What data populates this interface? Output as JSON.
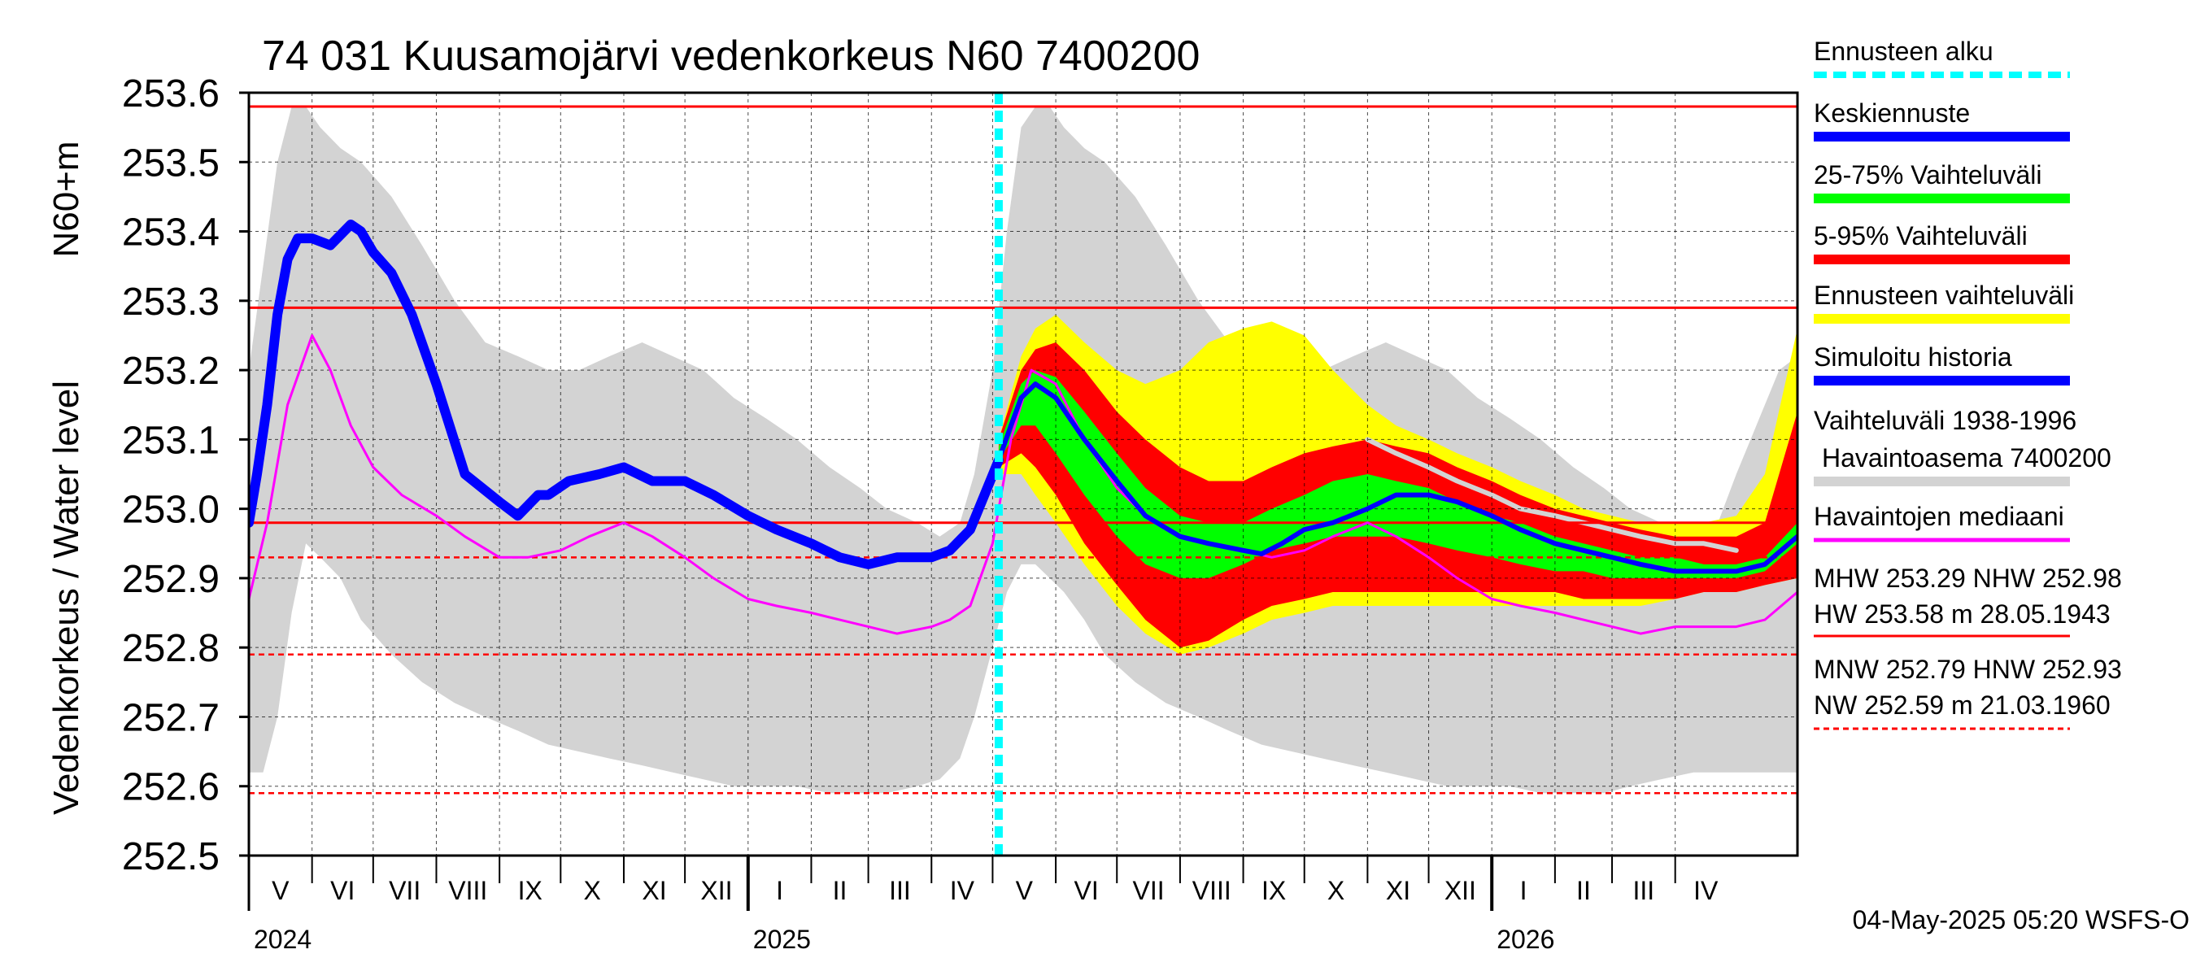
{
  "chart_data": {
    "type": "line",
    "title": "74 031 Kuusamojärvi vedenkorkeus N60 7400200",
    "ylabel_main": "Vedenkorkeus / Water level",
    "ylabel_unit": "N60+m",
    "ylim": [
      252.5,
      253.6
    ],
    "yticks": [
      252.5,
      252.6,
      252.7,
      252.8,
      252.9,
      253.0,
      253.1,
      253.2,
      253.3,
      253.4,
      253.5,
      253.6
    ],
    "x_start": "2024-05-01",
    "x_end": "2026-05-31",
    "forecast_start": "2025-05-04",
    "months": [
      "V",
      "VI",
      "VII",
      "VIII",
      "IX",
      "X",
      "XI",
      "XII",
      "I",
      "II",
      "III",
      "IV",
      "V",
      "VI",
      "VII",
      "VIII",
      "IX",
      "X",
      "XI",
      "XII",
      "I",
      "II",
      "III",
      "IV"
    ],
    "years": [
      {
        "label": "2024",
        "date": "2024-05-01"
      },
      {
        "label": "2025",
        "date": "2025-01-01"
      },
      {
        "label": "2026",
        "date": "2026-01-01"
      }
    ],
    "reference_lines": [
      {
        "name": "HW",
        "value": 253.58,
        "style": "solid"
      },
      {
        "name": "MHW",
        "value": 253.29,
        "style": "solid"
      },
      {
        "name": "NHW",
        "value": 252.98,
        "style": "solid"
      },
      {
        "name": "HNW",
        "value": 252.93,
        "style": "dashed"
      },
      {
        "name": "MNW",
        "value": 252.79,
        "style": "dashed"
      },
      {
        "name": "NW",
        "value": 252.59,
        "style": "dashed"
      }
    ],
    "series": {
      "history_range": {
        "name": "Vaihteluväli 1938-1996",
        "x": [
          "2024-05-01",
          "2024-05-08",
          "2024-05-15",
          "2024-05-22",
          "2024-05-29",
          "2024-06-05",
          "2024-06-15",
          "2024-06-25",
          "2024-07-10",
          "2024-07-25",
          "2024-08-10",
          "2024-08-25",
          "2024-09-10",
          "2024-09-25",
          "2024-10-10",
          "2024-10-25",
          "2024-11-10",
          "2024-11-25",
          "2024-12-10",
          "2024-12-25",
          "2025-01-10",
          "2025-01-25",
          "2025-02-10",
          "2025-02-25",
          "2025-03-10",
          "2025-03-25",
          "2025-04-05",
          "2025-04-15",
          "2025-04-22",
          "2025-05-01",
          "2025-05-08",
          "2025-05-15",
          "2025-05-22",
          "2025-05-29",
          "2025-06-05",
          "2025-06-15",
          "2025-06-25",
          "2025-07-10",
          "2025-07-25",
          "2025-08-10",
          "2025-08-25",
          "2025-09-10",
          "2025-09-25",
          "2025-10-10",
          "2025-10-25",
          "2025-11-10",
          "2025-11-25",
          "2025-12-10",
          "2025-12-25",
          "2026-01-10",
          "2026-01-25",
          "2026-02-10",
          "2026-02-25",
          "2026-03-10",
          "2026-03-25",
          "2026-04-10",
          "2026-04-22",
          "2026-05-01",
          "2026-05-08",
          "2026-05-15",
          "2026-05-22",
          "2026-05-31"
        ],
        "upper": [
          253.2,
          253.35,
          253.5,
          253.58,
          253.58,
          253.55,
          253.52,
          253.5,
          253.45,
          253.38,
          253.3,
          253.24,
          253.22,
          253.2,
          253.2,
          253.22,
          253.24,
          253.22,
          253.2,
          253.16,
          253.13,
          253.1,
          253.06,
          253.03,
          253.0,
          252.98,
          252.96,
          252.98,
          253.05,
          253.2,
          253.4,
          253.55,
          253.58,
          253.58,
          253.55,
          253.52,
          253.5,
          253.45,
          253.38,
          253.3,
          253.24,
          253.22,
          253.2,
          253.2,
          253.22,
          253.24,
          253.22,
          253.2,
          253.16,
          253.13,
          253.1,
          253.06,
          253.03,
          253.0,
          252.98,
          252.96,
          252.98,
          253.05,
          253.1,
          253.15,
          253.2,
          253.22
        ],
        "lower": [
          252.62,
          252.62,
          252.7,
          252.85,
          252.95,
          252.93,
          252.9,
          252.84,
          252.79,
          252.75,
          252.72,
          252.7,
          252.68,
          252.66,
          252.65,
          252.64,
          252.63,
          252.62,
          252.61,
          252.6,
          252.6,
          252.6,
          252.59,
          252.59,
          252.59,
          252.6,
          252.61,
          252.64,
          252.7,
          252.8,
          252.88,
          252.92,
          252.92,
          252.9,
          252.88,
          252.84,
          252.79,
          252.75,
          252.72,
          252.7,
          252.68,
          252.66,
          252.65,
          252.64,
          252.63,
          252.62,
          252.61,
          252.6,
          252.6,
          252.6,
          252.59,
          252.59,
          252.59,
          252.6,
          252.61,
          252.62,
          252.62,
          252.62,
          252.62,
          252.62,
          252.62,
          252.62
        ]
      },
      "forecast_envelope": {
        "name": "Ennusteen vaihteluväli",
        "x": [
          "2025-05-04",
          "2025-05-15",
          "2025-05-22",
          "2025-06-01",
          "2025-06-15",
          "2025-07-01",
          "2025-07-15",
          "2025-08-01",
          "2025-08-15",
          "2025-09-01",
          "2025-09-15",
          "2025-10-01",
          "2025-10-15",
          "2025-11-01",
          "2025-11-15",
          "2025-12-01",
          "2025-12-15",
          "2026-01-01",
          "2026-01-15",
          "2026-02-01",
          "2026-02-15",
          "2026-03-01",
          "2026-03-15",
          "2026-04-01",
          "2026-04-15",
          "2026-05-01",
          "2026-05-15",
          "2026-05-31"
        ],
        "upper": [
          253.1,
          253.22,
          253.26,
          253.28,
          253.24,
          253.2,
          253.18,
          253.2,
          253.24,
          253.26,
          253.27,
          253.25,
          253.2,
          253.15,
          253.12,
          253.1,
          253.08,
          253.06,
          253.04,
          253.02,
          253.0,
          252.99,
          252.98,
          252.98,
          252.98,
          252.99,
          253.05,
          253.26
        ],
        "lower": [
          253.05,
          253.05,
          253.02,
          252.98,
          252.92,
          252.86,
          252.82,
          252.79,
          252.8,
          252.82,
          252.84,
          252.85,
          252.86,
          252.86,
          252.86,
          252.86,
          252.86,
          252.86,
          252.86,
          252.86,
          252.86,
          252.86,
          252.86,
          252.87,
          252.88,
          252.88,
          252.89,
          252.9
        ]
      },
      "range_5_95": {
        "name": "5-95% Vaihteluväli",
        "x": [
          "2025-05-04",
          "2025-05-15",
          "2025-05-22",
          "2025-06-01",
          "2025-06-15",
          "2025-07-01",
          "2025-07-15",
          "2025-08-01",
          "2025-08-15",
          "2025-09-01",
          "2025-09-15",
          "2025-10-01",
          "2025-10-15",
          "2025-11-01",
          "2025-11-15",
          "2025-12-01",
          "2025-12-15",
          "2026-01-01",
          "2026-01-15",
          "2026-02-01",
          "2026-02-15",
          "2026-03-01",
          "2026-03-15",
          "2026-04-01",
          "2026-04-15",
          "2026-05-01",
          "2026-05-15",
          "2026-05-31"
        ],
        "upper": [
          253.1,
          253.2,
          253.23,
          253.24,
          253.2,
          253.14,
          253.1,
          253.06,
          253.04,
          253.04,
          253.06,
          253.08,
          253.09,
          253.1,
          253.09,
          253.08,
          253.06,
          253.04,
          253.02,
          253.0,
          252.99,
          252.98,
          252.97,
          252.96,
          252.96,
          252.96,
          252.98,
          253.14
        ],
        "lower": [
          253.06,
          253.08,
          253.06,
          253.02,
          252.95,
          252.89,
          252.84,
          252.8,
          252.81,
          252.84,
          252.86,
          252.87,
          252.88,
          252.88,
          252.88,
          252.88,
          252.88,
          252.88,
          252.88,
          252.88,
          252.87,
          252.87,
          252.87,
          252.87,
          252.88,
          252.88,
          252.89,
          252.9
        ]
      },
      "range_25_75": {
        "name": "25-75% Vaihteluväli",
        "x": [
          "2025-05-04",
          "2025-05-15",
          "2025-05-22",
          "2025-06-01",
          "2025-06-15",
          "2025-07-01",
          "2025-07-15",
          "2025-08-01",
          "2025-08-15",
          "2025-09-01",
          "2025-09-15",
          "2025-10-01",
          "2025-10-15",
          "2025-11-01",
          "2025-11-15",
          "2025-12-01",
          "2025-12-15",
          "2026-01-01",
          "2026-01-15",
          "2026-02-01",
          "2026-02-15",
          "2026-03-01",
          "2026-03-15",
          "2026-04-01",
          "2026-04-15",
          "2026-05-01",
          "2026-05-15",
          "2026-05-31"
        ],
        "upper": [
          253.09,
          253.18,
          253.2,
          253.19,
          253.14,
          253.08,
          253.03,
          252.99,
          252.98,
          252.98,
          253.0,
          253.02,
          253.04,
          253.05,
          253.04,
          253.03,
          253.01,
          252.99,
          252.98,
          252.96,
          252.95,
          252.94,
          252.93,
          252.93,
          252.92,
          252.92,
          252.93,
          252.98
        ],
        "lower": [
          253.07,
          253.12,
          253.12,
          253.08,
          253.02,
          252.96,
          252.92,
          252.9,
          252.9,
          252.92,
          252.94,
          252.95,
          252.96,
          252.96,
          252.96,
          252.95,
          252.94,
          252.93,
          252.92,
          252.91,
          252.91,
          252.9,
          252.9,
          252.9,
          252.9,
          252.9,
          252.91,
          252.95
        ]
      },
      "median_forecast": {
        "name": "Keskiennuste",
        "x": [
          "2025-05-04",
          "2025-05-10",
          "2025-05-15",
          "2025-05-22",
          "2025-06-01",
          "2025-06-15",
          "2025-07-01",
          "2025-07-15",
          "2025-08-01",
          "2025-08-15",
          "2025-09-01",
          "2025-09-10",
          "2025-09-20",
          "2025-10-01",
          "2025-10-15",
          "2025-11-01",
          "2025-11-15",
          "2025-12-01",
          "2025-12-15",
          "2026-01-01",
          "2026-01-15",
          "2026-02-01",
          "2026-02-15",
          "2026-03-01",
          "2026-03-15",
          "2026-04-01",
          "2026-04-15",
          "2026-05-01",
          "2026-05-15",
          "2026-05-31"
        ],
        "y": [
          253.07,
          253.12,
          253.16,
          253.18,
          253.16,
          253.1,
          253.04,
          252.99,
          252.96,
          252.95,
          252.94,
          252.935,
          252.95,
          252.97,
          252.98,
          253.0,
          253.02,
          253.02,
          253.01,
          252.99,
          252.97,
          252.95,
          252.94,
          252.93,
          252.92,
          252.91,
          252.91,
          252.91,
          252.92,
          252.96
        ]
      },
      "simulated_history": {
        "name": "Simuloitu historia",
        "x": [
          "2024-05-01",
          "2024-05-05",
          "2024-05-10",
          "2024-05-15",
          "2024-05-20",
          "2024-05-25",
          "2024-06-01",
          "2024-06-10",
          "2024-06-20",
          "2024-06-25",
          "2024-07-01",
          "2024-07-10",
          "2024-07-20",
          "2024-08-01",
          "2024-08-15",
          "2024-09-01",
          "2024-09-10",
          "2024-09-20",
          "2024-09-25",
          "2024-10-05",
          "2024-10-20",
          "2024-11-01",
          "2024-11-15",
          "2024-12-01",
          "2024-12-15",
          "2025-01-01",
          "2025-01-15",
          "2025-02-01",
          "2025-02-15",
          "2025-03-01",
          "2025-03-15",
          "2025-03-25",
          "2025-04-01",
          "2025-04-10",
          "2025-04-20",
          "2025-05-04"
        ],
        "y": [
          252.98,
          253.05,
          253.15,
          253.28,
          253.36,
          253.39,
          253.39,
          253.38,
          253.41,
          253.4,
          253.37,
          253.34,
          253.28,
          253.18,
          253.05,
          253.01,
          252.99,
          253.02,
          253.02,
          253.04,
          253.05,
          253.06,
          253.04,
          253.04,
          253.02,
          252.99,
          252.97,
          252.95,
          252.93,
          252.92,
          252.93,
          252.93,
          252.93,
          252.94,
          252.97,
          253.07
        ]
      },
      "observed_median": {
        "name": "Havaintojen mediaani",
        "x": [
          "2024-05-01",
          "2024-05-10",
          "2024-05-20",
          "2024-06-01",
          "2024-06-10",
          "2024-06-20",
          "2024-07-01",
          "2024-07-15",
          "2024-08-01",
          "2024-08-15",
          "2024-09-01",
          "2024-09-15",
          "2024-10-01",
          "2024-10-15",
          "2024-11-01",
          "2024-11-15",
          "2024-12-01",
          "2024-12-15",
          "2025-01-01",
          "2025-01-15",
          "2025-02-01",
          "2025-02-15",
          "2025-03-01",
          "2025-03-15",
          "2025-04-01",
          "2025-04-10",
          "2025-04-20",
          "2025-05-01",
          "2025-05-10",
          "2025-05-20",
          "2025-06-01",
          "2025-06-15",
          "2025-07-01",
          "2025-07-15",
          "2025-08-01",
          "2025-08-15",
          "2025-09-01",
          "2025-09-15",
          "2025-10-01",
          "2025-10-15",
          "2025-11-01",
          "2025-11-15",
          "2025-12-01",
          "2025-12-15",
          "2026-01-01",
          "2026-01-15",
          "2026-02-01",
          "2026-02-15",
          "2026-03-01",
          "2026-03-15",
          "2026-04-01",
          "2026-04-15",
          "2026-05-01",
          "2026-05-15",
          "2026-05-31"
        ],
        "y": [
          252.87,
          252.98,
          253.15,
          253.25,
          253.2,
          253.12,
          253.06,
          253.02,
          252.99,
          252.96,
          252.93,
          252.93,
          252.94,
          252.96,
          252.98,
          252.96,
          252.93,
          252.9,
          252.87,
          252.86,
          252.85,
          252.84,
          252.83,
          252.82,
          252.83,
          252.84,
          252.86,
          252.95,
          253.1,
          253.2,
          253.18,
          253.1,
          253.03,
          252.99,
          252.96,
          252.95,
          252.94,
          252.93,
          252.94,
          252.96,
          252.98,
          252.96,
          252.93,
          252.9,
          252.87,
          252.86,
          252.85,
          252.84,
          252.83,
          252.82,
          252.83,
          252.83,
          252.83,
          252.84,
          252.88
        ]
      },
      "sim_history_grey": {
        "name": "Vaihteluväli 1938-1996",
        "x": [
          "2025-11-01",
          "2025-11-15",
          "2025-12-01",
          "2025-12-15",
          "2026-01-01",
          "2026-01-15",
          "2026-02-01",
          "2026-02-15",
          "2026-03-01",
          "2026-03-15",
          "2026-04-01",
          "2026-04-15",
          "2026-05-01"
        ],
        "y": [
          253.1,
          253.08,
          253.06,
          253.04,
          253.02,
          253.0,
          252.99,
          252.98,
          252.97,
          252.96,
          252.95,
          252.95,
          252.94
        ]
      }
    },
    "legend": [
      {
        "label": "Ennusteen alku",
        "color": "#00ffff",
        "style": "dashed"
      },
      {
        "label": "Keskiennuste",
        "color": "#0000ff",
        "style": "solid"
      },
      {
        "label": "25-75% Vaihteluväli",
        "color": "#00ff00",
        "style": "solid"
      },
      {
        "label": "5-95% Vaihteluväli",
        "color": "#ff0000",
        "style": "solid"
      },
      {
        "label": "Ennusteen vaihteluväli",
        "color": "#ffff00",
        "style": "solid"
      },
      {
        "label": "Simuloitu historia",
        "color": "#0000ff",
        "style": "solid"
      },
      {
        "label": "Vaihteluväli 1938-1996",
        "label2": "Havaintoasema 7400200",
        "color": "#d3d3d3",
        "style": "solid"
      },
      {
        "label": "Havaintojen mediaani",
        "color": "#ff00ff",
        "style": "solid"
      }
    ],
    "stats": [
      {
        "line1": "MHW 253.29 NHW 252.98",
        "line2": "HW 253.58 m 28.05.1943",
        "style": "solid"
      },
      {
        "line1": "MNW 252.79 HNW 252.93",
        "line2": "NW 252.59 m 21.03.1960",
        "style": "dashed"
      }
    ],
    "footer": "04-May-2025 05:20 WSFS-O",
    "colors": {
      "history_range": "#d3d3d3",
      "forecast_envelope": "#ffff00",
      "range_5_95": "#ff0000",
      "range_25_75": "#00ff00",
      "median_forecast": "#0000ff",
      "simulated_history": "#0000ff",
      "observed_median": "#ff00ff",
      "forecast_start": "#00ffff",
      "reference": "#ff0000",
      "grid": "#000000"
    }
  }
}
